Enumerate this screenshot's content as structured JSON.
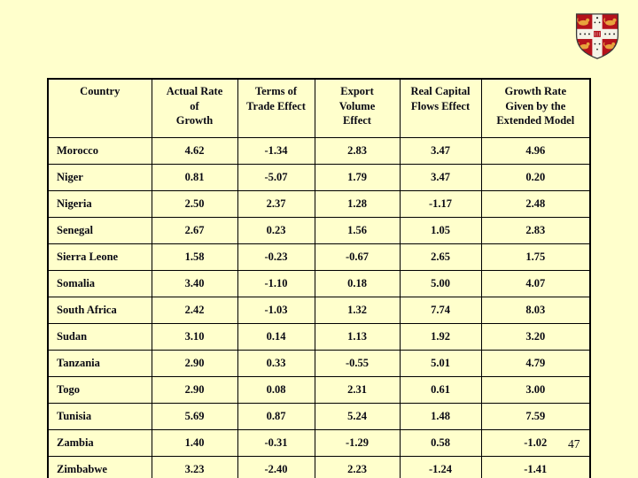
{
  "slide": {
    "background": "#FFFFCC",
    "page_number": "47"
  },
  "logo": {
    "name": "cambridge-crest",
    "colors": {
      "red": "#B5121B",
      "gold": "#E8A33D",
      "cross": "#F5F3E7",
      "outline": "#3a3a3a"
    }
  },
  "table": {
    "columns": [
      "Country",
      "Actual Rate\nof\nGrowth",
      "Terms of\nTrade Effect",
      "Export\nVolume\nEffect",
      "Real Capital\nFlows Effect",
      "Growth Rate\nGiven by the\nExtended Model"
    ],
    "rows": [
      {
        "country": "Morocco",
        "values": [
          "4.62",
          "-1.34",
          "2.83",
          "3.47",
          "4.96"
        ]
      },
      {
        "country": "Niger",
        "values": [
          "0.81",
          "-5.07",
          "1.79",
          "3.47",
          "0.20"
        ]
      },
      {
        "country": "Nigeria",
        "values": [
          "2.50",
          "2.37",
          "1.28",
          "-1.17",
          "2.48"
        ]
      },
      {
        "country": "Senegal",
        "values": [
          "2.67",
          "0.23",
          "1.56",
          "1.05",
          "2.83"
        ]
      },
      {
        "country": "Sierra Leone",
        "values": [
          "1.58",
          "-0.23",
          "-0.67",
          "2.65",
          "1.75"
        ]
      },
      {
        "country": "Somalia",
        "values": [
          "3.40",
          "-1.10",
          "0.18",
          "5.00",
          "4.07"
        ]
      },
      {
        "country": "South Africa",
        "values": [
          "2.42",
          "-1.03",
          "1.32",
          "7.74",
          "8.03"
        ]
      },
      {
        "country": "Sudan",
        "values": [
          "3.10",
          "0.14",
          "1.13",
          "1.92",
          "3.20"
        ]
      },
      {
        "country": "Tanzania",
        "values": [
          "2.90",
          "0.33",
          "-0.55",
          "5.01",
          "4.79"
        ]
      },
      {
        "country": "Togo",
        "values": [
          "2.90",
          "0.08",
          "2.31",
          "0.61",
          "3.00"
        ]
      },
      {
        "country": "Tunisia",
        "values": [
          "5.69",
          "0.87",
          "5.24",
          "1.48",
          "7.59"
        ]
      },
      {
        "country": "Zambia",
        "values": [
          "1.40",
          "-0.31",
          "-1.29",
          "0.58",
          "-1.02"
        ]
      },
      {
        "country": "Zimbabwe",
        "values": [
          "3.23",
          "-2.40",
          "2.23",
          "-1.24",
          "-1.41"
        ]
      }
    ]
  }
}
